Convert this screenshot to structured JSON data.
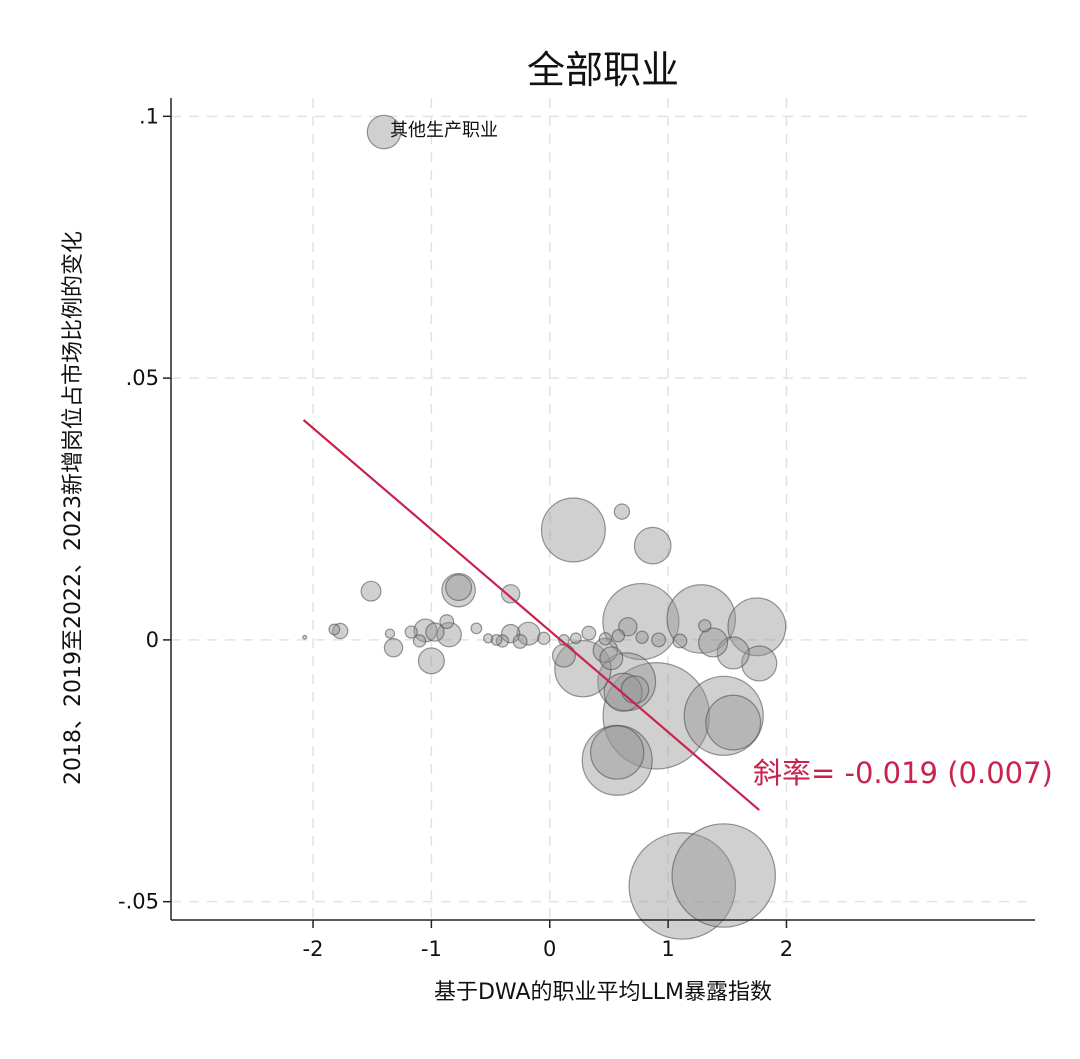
{
  "chart_data": {
    "type": "scatter",
    "title": "全部职业",
    "xlabel": "基于DWA的职业平均LLM暴露指数",
    "ylabel": "2018、2019至2022、2023新增岗位占市场比例的变化",
    "xlim": [
      -3.2,
      4.1
    ],
    "ylim": [
      -0.0535,
      0.1035
    ],
    "x_ticks": [
      -2,
      -1,
      0,
      1,
      2
    ],
    "x_tick_labels": [
      "-2",
      "-1",
      "0",
      "1",
      "2"
    ],
    "y_ticks": [
      0.1,
      0.05,
      0,
      -0.05
    ],
    "y_tick_labels": [
      ".1",
      ".05",
      "0",
      "-.05"
    ],
    "grid": true,
    "annotation": {
      "label": "其他生产职业",
      "x": -1.4,
      "y": 0.097
    },
    "fit_line": {
      "x": [
        -2.08,
        1.77
      ],
      "y": [
        0.042,
        -0.0325
      ],
      "color": "#c8234e"
    },
    "slope_text": "斜率= -0.019 (0.007)",
    "colors": {
      "bubble": "#969696",
      "fit": "#c8234e"
    },
    "points": [
      {
        "x": -1.4,
        "y": 0.097,
        "size": 2.2
      },
      {
        "x": 0.2,
        "y": 0.021,
        "size": 4.2
      },
      {
        "x": 0.61,
        "y": 0.0245,
        "size": 1.0
      },
      {
        "x": 0.87,
        "y": 0.018,
        "size": 2.4
      },
      {
        "x": -1.51,
        "y": 0.0093,
        "size": 1.3
      },
      {
        "x": -0.77,
        "y": 0.01,
        "size": 1.7
      },
      {
        "x": -0.77,
        "y": 0.0095,
        "size": 2.2
      },
      {
        "x": -0.33,
        "y": 0.0088,
        "size": 1.2
      },
      {
        "x": 0.77,
        "y": 0.0035,
        "size": 5.0
      },
      {
        "x": 1.28,
        "y": 0.004,
        "size": 4.5
      },
      {
        "x": 1.75,
        "y": 0.0025,
        "size": 3.8
      },
      {
        "x": 1.31,
        "y": 0.0027,
        "size": 0.8
      },
      {
        "x": 0.66,
        "y": 0.0025,
        "size": 1.2
      },
      {
        "x": -1.82,
        "y": 0.002,
        "size": 0.7
      },
      {
        "x": -1.77,
        "y": 0.0017,
        "size": 1.0
      },
      {
        "x": -1.35,
        "y": 0.0012,
        "size": 0.6
      },
      {
        "x": -1.17,
        "y": 0.0015,
        "size": 0.8
      },
      {
        "x": -1.05,
        "y": 0.0018,
        "size": 1.5
      },
      {
        "x": -0.97,
        "y": 0.0015,
        "size": 1.2
      },
      {
        "x": -0.87,
        "y": 0.0035,
        "size": 0.9
      },
      {
        "x": -0.85,
        "y": 0.001,
        "size": 1.6
      },
      {
        "x": -0.62,
        "y": 0.0022,
        "size": 0.7
      },
      {
        "x": -0.52,
        "y": 0.0003,
        "size": 0.6
      },
      {
        "x": -0.45,
        "y": 0.0,
        "size": 0.7
      },
      {
        "x": -0.33,
        "y": 0.0012,
        "size": 1.2
      },
      {
        "x": -0.18,
        "y": 0.0012,
        "size": 1.5
      },
      {
        "x": -0.05,
        "y": 0.0003,
        "size": 0.8
      },
      {
        "x": -1.32,
        "y": -0.0015,
        "size": 1.2
      },
      {
        "x": -1.1,
        "y": -0.0002,
        "size": 0.8
      },
      {
        "x": -1.0,
        "y": -0.004,
        "size": 1.7
      },
      {
        "x": -0.4,
        "y": -0.0002,
        "size": 0.8
      },
      {
        "x": -0.25,
        "y": -0.0003,
        "size": 0.9
      },
      {
        "x": 0.12,
        "y": 0.0,
        "size": 0.7
      },
      {
        "x": 0.22,
        "y": 0.0003,
        "size": 0.7
      },
      {
        "x": 0.33,
        "y": 0.0013,
        "size": 0.9
      },
      {
        "x": 0.47,
        "y": 0.0002,
        "size": 0.8
      },
      {
        "x": 0.58,
        "y": 0.0008,
        "size": 0.8
      },
      {
        "x": 0.78,
        "y": 0.0005,
        "size": 0.8
      },
      {
        "x": 0.92,
        "y": 0.0,
        "size": 0.9
      },
      {
        "x": 1.1,
        "y": -0.0002,
        "size": 0.9
      },
      {
        "x": 1.38,
        "y": -0.0005,
        "size": 1.9
      },
      {
        "x": 1.55,
        "y": -0.0025,
        "size": 2.1
      },
      {
        "x": 1.77,
        "y": -0.0045,
        "size": 2.3
      },
      {
        "x": 0.12,
        "y": -0.003,
        "size": 1.5
      },
      {
        "x": 0.28,
        "y": -0.0055,
        "size": 3.7
      },
      {
        "x": 0.47,
        "y": -0.002,
        "size": 1.6
      },
      {
        "x": 0.52,
        "y": -0.0035,
        "size": 1.5
      },
      {
        "x": 0.62,
        "y": -0.01,
        "size": 2.5
      },
      {
        "x": 0.72,
        "y": -0.0095,
        "size": 1.8
      },
      {
        "x": 0.65,
        "y": -0.008,
        "size": 3.8
      },
      {
        "x": 0.9,
        "y": -0.0145,
        "size": 7.0
      },
      {
        "x": 1.47,
        "y": -0.0145,
        "size": 5.2
      },
      {
        "x": 1.55,
        "y": -0.0158,
        "size": 3.6
      },
      {
        "x": 0.57,
        "y": -0.023,
        "size": 4.6
      },
      {
        "x": 0.57,
        "y": -0.0215,
        "size": 3.5
      },
      {
        "x": 1.12,
        "y": -0.047,
        "size": 7.0
      },
      {
        "x": 1.47,
        "y": -0.045,
        "size": 6.8
      },
      {
        "x": -2.07,
        "y": 0.0005,
        "size": 0.25
      }
    ]
  }
}
